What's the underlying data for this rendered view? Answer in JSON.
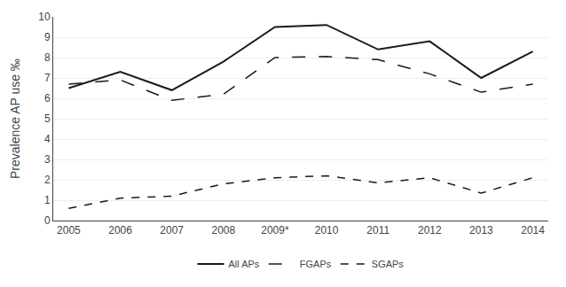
{
  "chart_data": {
    "type": "line",
    "ylabel": "Prevalence AP use ‰",
    "categories": [
      "2005",
      "2006",
      "2007",
      "2008",
      "2009*",
      "2010",
      "2011",
      "2012",
      "2013",
      "2014"
    ],
    "series": [
      {
        "name": "All APs",
        "color": "#1a1a1a",
        "line_style": "solid",
        "values": [
          6.5,
          7.3,
          6.4,
          7.8,
          9.5,
          9.6,
          8.4,
          8.8,
          7.0,
          8.3
        ]
      },
      {
        "name": "FGAPs",
        "color": "#1a1a1a",
        "line_style": "longdash",
        "values": [
          6.7,
          6.9,
          5.9,
          6.2,
          8.0,
          8.05,
          7.9,
          7.2,
          6.3,
          6.7
        ]
      },
      {
        "name": "SGAPs",
        "color": "#1a1a1a",
        "line_style": "dash",
        "values": [
          0.6,
          1.1,
          1.2,
          1.8,
          2.1,
          2.2,
          1.85,
          2.1,
          1.35,
          2.1
        ]
      }
    ],
    "ylim": [
      0,
      10
    ],
    "yticks": [
      0,
      1,
      2,
      3,
      4,
      5,
      6,
      7,
      8,
      9,
      10
    ],
    "grid": true,
    "legend": "bottom"
  }
}
